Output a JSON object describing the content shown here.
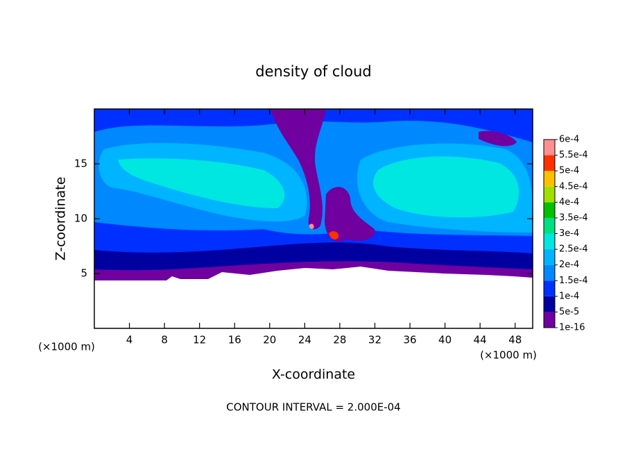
{
  "chart_data": {
    "type": "contour",
    "title": "density of cloud",
    "xlabel": "X-coordinate",
    "ylabel": "Z-coordinate",
    "x_unit": "(×1000 m)",
    "y_unit": "(×1000 m)",
    "note": "CONTOUR INTERVAL = 2.000E-04",
    "xlim": [
      0,
      50
    ],
    "ylim": [
      0,
      20
    ],
    "xticks": [
      4,
      8,
      12,
      16,
      20,
      24,
      28,
      32,
      36,
      40,
      44,
      48
    ],
    "yticks": [
      5,
      10,
      15
    ],
    "colorbar": {
      "levels": [
        {
          "value": 1e-16,
          "label": "1e-16"
        },
        {
          "value": 5e-05,
          "label": "5e-5"
        },
        {
          "value": 0.0001,
          "label": "1e-4"
        },
        {
          "value": 0.00015,
          "label": "1.5e-4"
        },
        {
          "value": 0.0002,
          "label": "2e-4"
        },
        {
          "value": 0.00025,
          "label": "2.5e-4"
        },
        {
          "value": 0.0003,
          "label": "3e-4"
        },
        {
          "value": 0.00035,
          "label": "3.5e-4"
        },
        {
          "value": 0.0004,
          "label": "4e-4"
        },
        {
          "value": 0.00045,
          "label": "4.5e-4"
        },
        {
          "value": 0.0005,
          "label": "5e-4"
        },
        {
          "value": 0.00055,
          "label": "5.5e-4"
        },
        {
          "value": 0.0006,
          "label": "6e-4"
        }
      ],
      "colors": [
        "#7000a0",
        "#0000a0",
        "#0030ff",
        "#0088ff",
        "#00b4ff",
        "#00e6e0",
        "#00e080",
        "#00c000",
        "#a0e000",
        "#ffc000",
        "#ff3000",
        "#ff9090"
      ]
    }
  }
}
